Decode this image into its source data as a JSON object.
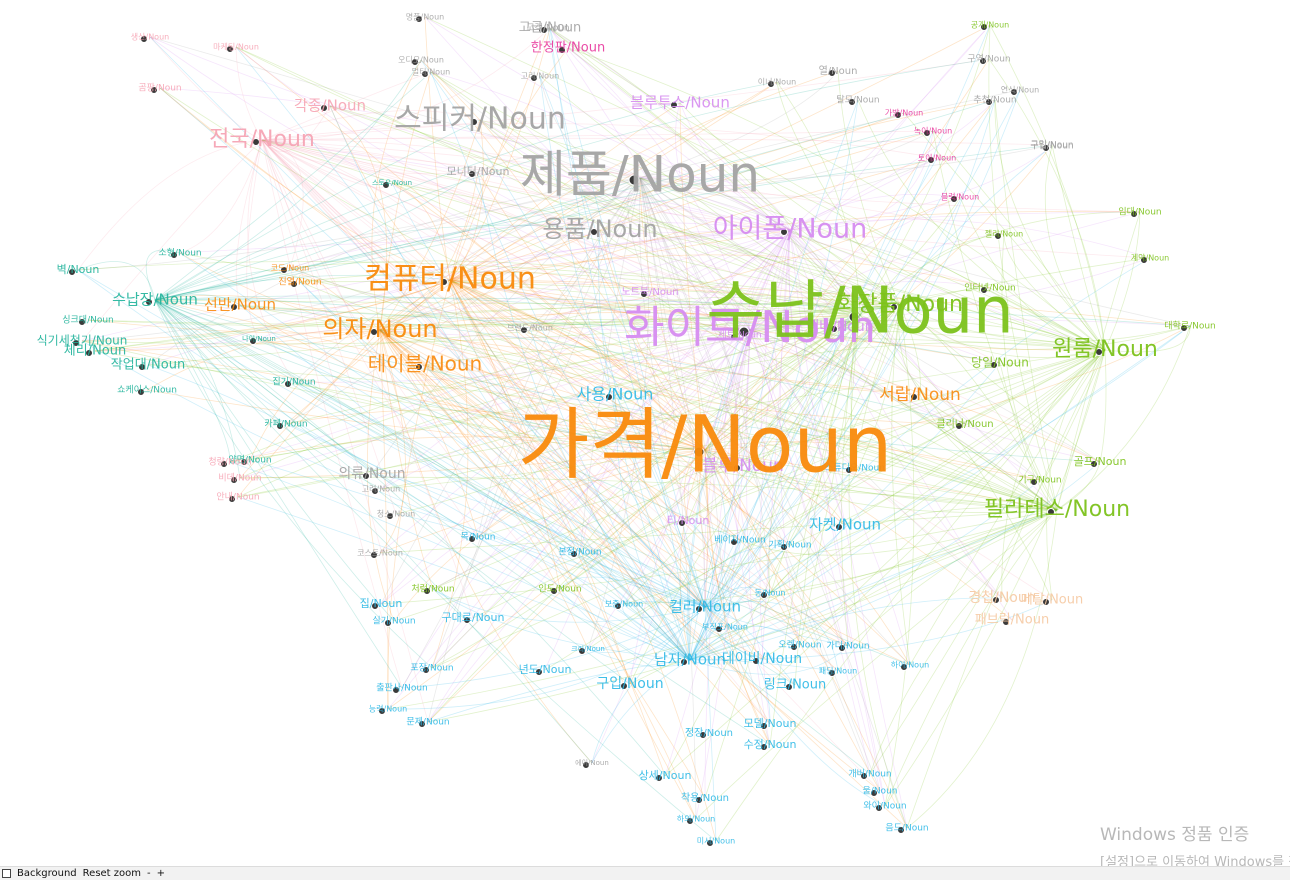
{
  "palette": {
    "orange": "#f98a0c",
    "green": "#7cc21b",
    "gray": "#a3a3a3",
    "purple": "#d68cf0",
    "teal": "#1fb29a",
    "pink": "#f6a4b4",
    "sky": "#2bb8e6",
    "peach": "#f5c9a2",
    "magenta": "#e8369c"
  },
  "nodes": [
    {
      "label": "가격/Noun",
      "color": "orange",
      "weight": 78
    },
    {
      "label": "수납/Noun",
      "color": "green",
      "weight": 64
    },
    {
      "label": "화이트/Noun",
      "color": "purple",
      "weight": 44
    },
    {
      "label": "제품/Noun",
      "color": "gray",
      "weight": 50
    },
    {
      "label": "스피커/Noun",
      "color": "gray",
      "weight": 30
    },
    {
      "label": "컴퓨터/Noun",
      "color": "orange",
      "weight": 30
    },
    {
      "label": "아이폰/Noun",
      "color": "purple",
      "weight": 27
    },
    {
      "label": "의자/Noun",
      "color": "orange",
      "weight": 24
    },
    {
      "label": "테이블/Noun",
      "color": "orange",
      "weight": 20
    },
    {
      "label": "전국/Noun",
      "color": "pink",
      "weight": 22
    },
    {
      "label": "필라테스/Noun",
      "color": "green",
      "weight": 22
    },
    {
      "label": "화장품/Noun",
      "color": "green",
      "weight": 22
    },
    {
      "label": "원룸/Noun",
      "color": "green",
      "weight": 22
    },
    {
      "label": "용품/Noun",
      "color": "gray",
      "weight": 24
    },
    {
      "label": "블루투스/Noun",
      "color": "purple",
      "weight": 15
    },
    {
      "label": "블루/Noun",
      "color": "purple",
      "weight": 17
    },
    {
      "label": "사용/Noun",
      "color": "sky",
      "weight": 16
    },
    {
      "label": "서랍/Noun",
      "color": "orange",
      "weight": 17
    },
    {
      "label": "컬러/Noun",
      "color": "sky",
      "weight": 15
    },
    {
      "label": "자켓/Noun",
      "color": "sky",
      "weight": 15
    },
    {
      "label": "선반/Noun",
      "color": "orange",
      "weight": 15
    },
    {
      "label": "수납장/Noun",
      "color": "teal",
      "weight": 15
    },
    {
      "label": "택배/Noun",
      "color": "purple",
      "weight": 14
    },
    {
      "label": "의류/Noun",
      "color": "gray",
      "weight": 14
    },
    {
      "label": "각종/Noun",
      "color": "pink",
      "weight": 15
    },
    {
      "label": "남자/Noun",
      "color": "sky",
      "weight": 15
    },
    {
      "label": "데이비/Noun",
      "color": "sky",
      "weight": 14
    },
    {
      "label": "구입/Noun",
      "color": "sky",
      "weight": 14
    },
    {
      "label": "링크/Noun",
      "color": "sky",
      "weight": 13
    },
    {
      "label": "한정판/Noun",
      "color": "magenta",
      "weight": 13
    },
    {
      "label": "식기세척기/Noun",
      "color": "teal",
      "weight": 12
    },
    {
      "label": "작업대/Noun",
      "color": "teal",
      "weight": 13
    },
    {
      "label": "체리/Noun",
      "color": "teal",
      "weight": 13
    },
    {
      "label": "집/Noun",
      "color": "sky",
      "weight": 11
    },
    {
      "label": "상세/Noun",
      "color": "sky",
      "weight": 11
    },
    {
      "label": "모델/Noun",
      "color": "sky",
      "weight": 11
    },
    {
      "label": "수정/Noun",
      "color": "sky",
      "weight": 11
    },
    {
      "label": "정장/Noun",
      "color": "sky",
      "weight": 10
    },
    {
      "label": "착용/Noun",
      "color": "sky",
      "weight": 10
    },
    {
      "label": "년도/Noun",
      "color": "sky",
      "weight": 11
    },
    {
      "label": "벽/Noun",
      "color": "teal",
      "weight": 11
    },
    {
      "label": "당일/Noun",
      "color": "green",
      "weight": 12
    },
    {
      "label": "골프/Noun",
      "color": "green",
      "weight": 11
    },
    {
      "label": "구대로/Noun",
      "color": "sky",
      "weight": 11
    },
    {
      "label": "티/Noun",
      "color": "purple",
      "weight": 11
    },
    {
      "label": "모니터/Noun",
      "color": "gray",
      "weight": 11
    },
    {
      "label": "집기/Noun",
      "color": "teal",
      "weight": 9
    },
    {
      "label": "구역/Noun",
      "color": "gray",
      "weight": 9
    },
    {
      "label": "추천/Noun",
      "color": "gray",
      "weight": 9
    },
    {
      "label": "구입/Noun",
      "color": "gray",
      "weight": 9
    },
    {
      "label": "열/Noun",
      "color": "gray",
      "weight": 10
    },
    {
      "label": "고급/Noun",
      "color": "gray",
      "weight": 13
    },
    {
      "label": "임대/Noun",
      "color": "green",
      "weight": 9
    },
    {
      "label": "대학로/Noun",
      "color": "green",
      "weight": 9
    },
    {
      "label": "기구/Noun",
      "color": "green",
      "weight": 9
    },
    {
      "label": "베이지/Noun",
      "color": "sky",
      "weight": 9
    },
    {
      "label": "기획/Noun",
      "color": "sky",
      "weight": 9
    },
    {
      "label": "포장/Noun",
      "color": "sky",
      "weight": 9
    },
    {
      "label": "출판사/Noun",
      "color": "sky",
      "weight": 9
    },
    {
      "label": "문제/Noun",
      "color": "sky",
      "weight": 9
    },
    {
      "label": "실기/Noun",
      "color": "sky",
      "weight": 9
    },
    {
      "label": "처럼/Noun",
      "color": "green",
      "weight": 9
    },
    {
      "label": "인도/Noun",
      "color": "green",
      "weight": 9
    },
    {
      "label": "본점/Noun",
      "color": "sky",
      "weight": 9
    },
    {
      "label": "목/Noun",
      "color": "sky",
      "weight": 9
    },
    {
      "label": "오렌/Noun",
      "color": "sky",
      "weight": 9
    },
    {
      "label": "가디/Noun",
      "color": "sky",
      "weight": 9
    },
    {
      "label": "개버/Noun",
      "color": "sky",
      "weight": 9
    },
    {
      "label": "울/Noun",
      "color": "sky",
      "weight": 9
    },
    {
      "label": "와이/Noun",
      "color": "sky",
      "weight": 9
    },
    {
      "label": "음드/Noun",
      "color": "sky",
      "weight": 9
    },
    {
      "label": "하의/Noun",
      "color": "sky",
      "weight": 8
    },
    {
      "label": "미시/Noun",
      "color": "sky",
      "weight": 8
    },
    {
      "label": "능력/Noun",
      "color": "sky",
      "weight": 8
    },
    {
      "label": "소형/Noun",
      "color": "teal",
      "weight": 9
    },
    {
      "label": "쇼케이스/Noun",
      "color": "teal",
      "weight": 9
    },
    {
      "label": "싱크대/Noun",
      "color": "teal",
      "weight": 9
    },
    {
      "label": "카페/Noun",
      "color": "teal",
      "weight": 9
    },
    {
      "label": "양면/Noun",
      "color": "teal",
      "weight": 9
    },
    {
      "label": "청량/Noun",
      "color": "pink",
      "weight": 9
    },
    {
      "label": "비데/Noun",
      "color": "pink",
      "weight": 9
    },
    {
      "label": "안내/Noun",
      "color": "pink",
      "weight": 9
    },
    {
      "label": "곰팡/Noun",
      "color": "pink",
      "weight": 9
    },
    {
      "label": "생산/Noun",
      "color": "pink",
      "weight": 8
    },
    {
      "label": "명품/Noun",
      "color": "gray",
      "weight": 8
    },
    {
      "label": "마케팅/Noun",
      "color": "pink",
      "weight": 8
    },
    {
      "label": "코드/Noun",
      "color": "orange",
      "weight": 8
    },
    {
      "label": "고리/Noun",
      "color": "gray",
      "weight": 8
    },
    {
      "label": "진열/Noun",
      "color": "orange",
      "weight": 9
    },
    {
      "label": "탈모/Noun",
      "color": "gray",
      "weight": 9
    },
    {
      "label": "이너/Noun",
      "color": "gray",
      "weight": 8
    },
    {
      "label": "구립/Noun",
      "color": "gray",
      "weight": 9
    },
    {
      "label": "젤리/Noun",
      "color": "green",
      "weight": 8
    },
    {
      "label": "계약/Noun",
      "color": "green",
      "weight": 8
    },
    {
      "label": "공개/Noun",
      "color": "green",
      "weight": 8
    },
    {
      "label": "블럭/Noun",
      "color": "magenta",
      "weight": 8
    },
    {
      "label": "토이/Noun",
      "color": "magenta",
      "weight": 8
    },
    {
      "label": "녹이/Noun",
      "color": "magenta",
      "weight": 8
    },
    {
      "label": "가방/Noun",
      "color": "magenta",
      "weight": 8
    },
    {
      "label": "연식/Noun",
      "color": "gray",
      "weight": 8
    },
    {
      "label": "인터넷/Noun",
      "color": "green",
      "weight": 9
    },
    {
      "label": "클리너/Noun",
      "color": "green",
      "weight": 10
    },
    {
      "label": "브랜드/Noun",
      "color": "gray",
      "weight": 8
    },
    {
      "label": "고객/Noun",
      "color": "gray",
      "weight": 9
    },
    {
      "label": "노트북/Noun",
      "color": "purple",
      "weight": 10
    },
    {
      "label": "스튜디오/Noun",
      "color": "sky",
      "weight": 9
    },
    {
      "label": "세트/Noun",
      "color": "purple",
      "weight": 9
    },
    {
      "label": "동/Noun",
      "color": "sky",
      "weight": 8
    },
    {
      "label": "에이/Noun",
      "color": "gray",
      "weight": 7
    },
    {
      "label": "크리/Noun",
      "color": "sky",
      "weight": 7
    },
    {
      "label": "보증/Noun",
      "color": "sky",
      "weight": 8
    },
    {
      "label": "코스트/Noun",
      "color": "gray",
      "weight": 8
    },
    {
      "label": "청소/Noun",
      "color": "gray",
      "weight": 8
    },
    {
      "label": "고려/Noun",
      "color": "gray",
      "weight": 8
    },
    {
      "label": "오디오/Noun",
      "color": "gray",
      "weight": 8
    },
    {
      "label": "멀티/Noun",
      "color": "gray",
      "weight": 8
    },
    {
      "label": "나이/Noun",
      "color": "teal",
      "weight": 7
    },
    {
      "label": "스토우/Noun",
      "color": "teal",
      "weight": 7
    },
    {
      "label": "패딩/Noun",
      "color": "sky",
      "weight": 8
    },
    {
      "label": "하이/Noun",
      "color": "sky",
      "weight": 8
    },
    {
      "label": "부직포/Noun",
      "color": "sky",
      "weight": 8
    },
    {
      "label": "경첩/Noun",
      "color": "peach",
      "weight": 14
    },
    {
      "label": "메탈/Noun",
      "color": "peach",
      "weight": 13
    },
    {
      "label": "패브릭/Noun",
      "color": "peach",
      "weight": 13
    }
  ],
  "status_bar": {
    "background_label": "Background",
    "reset_zoom_label": "Reset zoom",
    "zoom_out_label": "-",
    "zoom_in_label": "+"
  },
  "watermark": {
    "title": "Windows 정품 인증",
    "subtitle": "[설정]으로 이동하여 Windows를 정품 인증합니다."
  }
}
